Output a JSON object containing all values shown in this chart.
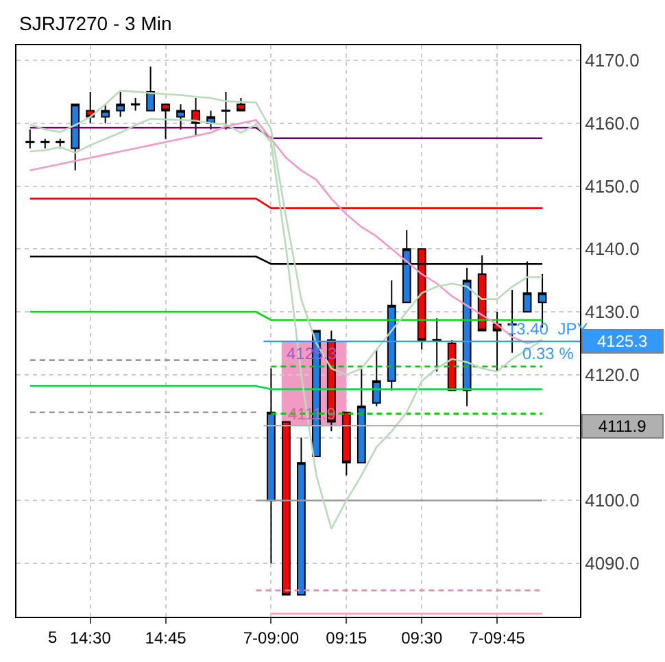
{
  "chart_data": {
    "type": "candlestick",
    "title": "SJRJ7270 - 3 Min",
    "categories": [
      null,
      null,
      null,
      null,
      "14:30",
      null,
      null,
      null,
      null,
      "14:45",
      null,
      null,
      null,
      null,
      null,
      null,
      "7-09:00",
      null,
      null,
      null,
      null,
      "09:15",
      null,
      null,
      null,
      null,
      "09:30",
      null,
      null,
      null,
      null,
      "7-09:45",
      null,
      null,
      null
    ],
    "ohlc": [
      [
        4157,
        4159,
        4156,
        4157
      ],
      [
        4157,
        4157.5,
        4156,
        4157
      ],
      [
        4157,
        4157.5,
        4156,
        4157
      ],
      [
        4156,
        4163,
        4152.5,
        4163
      ],
      [
        4162,
        4165,
        4160,
        4161
      ],
      [
        4161,
        4163,
        4160,
        4162
      ],
      [
        4162,
        4165,
        4161,
        4163
      ],
      [
        4163,
        4164,
        4162,
        4163
      ],
      [
        4162,
        4169,
        4162,
        4165
      ],
      [
        4163,
        4163,
        4157.5,
        4162
      ],
      [
        4161,
        4163,
        4159,
        4162
      ],
      [
        4162,
        4164,
        4158,
        4160
      ],
      [
        4160,
        4162,
        4159,
        4161
      ],
      [
        4162,
        4165,
        4159,
        4162
      ],
      [
        4163,
        4164,
        4162,
        4162
      ],
      null,
      [
        4100,
        4121,
        4090,
        4114
      ],
      [
        4112.5,
        4112.5,
        4085,
        4085
      ],
      [
        4085,
        4110,
        4085,
        4106
      ],
      [
        4107,
        4127,
        4107,
        4127
      ],
      [
        4125.5,
        4127,
        4111,
        4112.5
      ],
      [
        4114,
        4114,
        4104,
        4106
      ],
      [
        4106,
        4121,
        4106,
        4115
      ],
      [
        4115.5,
        4124,
        4115,
        4119
      ],
      [
        4119,
        4135,
        4117.5,
        4131
      ],
      [
        4131.5,
        4143,
        4131.5,
        4140
      ],
      [
        4140,
        4140,
        4124,
        4125.5
      ],
      [
        4125.5,
        4129,
        4120.5,
        4125.5
      ],
      [
        4125,
        4125.5,
        4117.5,
        4117.5
      ],
      [
        4117.5,
        4137,
        4115,
        4135
      ],
      [
        4136,
        4139,
        4127,
        4127
      ],
      [
        4128,
        4130,
        4120.5,
        4127
      ],
      [
        4128,
        4133.5,
        4123.5,
        4128
      ],
      [
        4130,
        4138,
        4130,
        4133
      ],
      [
        4131.5,
        4136,
        4127.5,
        4133
      ]
    ],
    "colors": [
      "#000000",
      "#000000",
      "#000000",
      "#1a7fe6",
      "#ff0000",
      "#1a7fe6",
      "#1a7fe6",
      "#000000",
      "#1a7fe6",
      "#ff0000",
      "#1a7fe6",
      "#ff0000",
      "#1a7fe6",
      "#000000",
      "#ff0000",
      null,
      "#1a7fe6",
      "#ff0000",
      "#1a7fe6",
      "#1a7fe6",
      "#ff0000",
      "#ff0000",
      "#1a7fe6",
      "#1a7fe6",
      "#1a7fe6",
      "#1a7fe6",
      "#ff0000",
      "#000000",
      "#ff0000",
      "#1a7fe6",
      "#ff0000",
      "#ff0000",
      "#000000",
      "#1a7fe6",
      "#1a7fe6"
    ],
    "series": [
      {
        "type": "line",
        "color": "#660066",
        "line_style": "solid",
        "values": [
          4159.3,
          4159.3,
          4159.3,
          4159.3,
          4159.3,
          4159.3,
          4159.3,
          4159.3,
          4159.3,
          4159.3,
          4159.3,
          4159.3,
          4159.3,
          4159.3,
          4159.3,
          4159.3,
          4157.6,
          4157.6,
          4157.6,
          4157.6,
          4157.6,
          4157.6,
          4157.6,
          4157.6,
          4157.6,
          4157.6,
          4157.6,
          4157.6,
          4157.6,
          4157.6,
          4157.6,
          4157.6,
          4157.6,
          4157.6,
          4157.6
        ]
      },
      {
        "type": "line",
        "color": "#ff0000",
        "line_style": "solid",
        "values": [
          4148,
          4148,
          4148,
          4148,
          4148,
          4148,
          4148,
          4148,
          4148,
          4148,
          4148,
          4148,
          4148,
          4148,
          4148,
          4148,
          4146.5,
          4146.5,
          4146.5,
          4146.5,
          4146.5,
          4146.5,
          4146.5,
          4146.5,
          4146.5,
          4146.5,
          4146.5,
          4146.5,
          4146.5,
          4146.5,
          4146.5,
          4146.5,
          4146.5,
          4146.5,
          4146.5
        ]
      },
      {
        "type": "line",
        "color": "#000000",
        "line_style": "solid",
        "values": [
          4138.8,
          4138.8,
          4138.8,
          4138.8,
          4138.8,
          4138.8,
          4138.8,
          4138.8,
          4138.8,
          4138.8,
          4138.8,
          4138.8,
          4138.8,
          4138.8,
          4138.8,
          4138.8,
          4137.6,
          4137.6,
          4137.6,
          4137.6,
          4137.6,
          4137.6,
          4137.6,
          4137.6,
          4137.6,
          4137.6,
          4137.6,
          4137.6,
          4137.6,
          4137.6,
          4137.6,
          4137.6,
          4137.6,
          4137.6,
          4137.6
        ]
      },
      {
        "type": "line",
        "color": "#00dd00",
        "line_style": "solid",
        "values": [
          4130,
          4130,
          4130,
          4130,
          4130,
          4130,
          4130,
          4130,
          4130,
          4130,
          4130,
          4130,
          4130,
          4130,
          4130,
          4130,
          4128.7,
          4128.7,
          4128.7,
          4128.7,
          4128.7,
          4128.7,
          4128.7,
          4128.7,
          4128.7,
          4128.7,
          4128.7,
          4128.7,
          4128.7,
          4128.7,
          4128.7,
          4128.7,
          4128.7,
          4128.7,
          4128.7
        ]
      },
      {
        "type": "line",
        "color": "#999999",
        "line_style": "dashed",
        "values": [
          4122.3,
          4122.3,
          4122.3,
          4122.3,
          4122.3,
          4122.3,
          4122.3,
          4122.3,
          4122.3,
          4122.3,
          4122.3,
          4122.3,
          4122.3,
          4122.3,
          4122.3,
          4122.3,
          null,
          null,
          null,
          null,
          null,
          null,
          null,
          null,
          null,
          null,
          null,
          null,
          null,
          null,
          null,
          null,
          null,
          null,
          null
        ]
      },
      {
        "type": "line",
        "color": "#00cc00",
        "line_style": "dashed",
        "values": [
          null,
          null,
          null,
          null,
          null,
          null,
          null,
          null,
          null,
          null,
          null,
          null,
          null,
          null,
          null,
          null,
          4121.3,
          4121.3,
          4121.3,
          4121.3,
          4121.3,
          4121.3,
          4121.3,
          4121.3,
          4121.3,
          4121.3,
          4121.3,
          4121.3,
          4121.3,
          4121.3,
          4121.3,
          4121.3,
          4121.3,
          4121.3,
          4121.3
        ]
      },
      {
        "type": "line",
        "color": "#00dd44",
        "line_style": "solid",
        "values": [
          4118.2,
          4118.2,
          4118.2,
          4118.2,
          4118.2,
          4118.2,
          4118.2,
          4118.2,
          4118.2,
          4118.2,
          4118.2,
          4118.2,
          4118.2,
          4118.2,
          4118.2,
          4118.2,
          4117.7,
          4117.7,
          4117.7,
          4117.7,
          4117.7,
          4117.7,
          4117.7,
          4117.7,
          4117.7,
          4117.7,
          4117.7,
          4117.7,
          4117.7,
          4117.7,
          4117.7,
          4117.7,
          4117.7,
          4117.7,
          4117.7
        ]
      },
      {
        "type": "line",
        "color": "#999999",
        "line_style": "dashed",
        "values": [
          4114,
          4114,
          4114,
          4114,
          4114,
          4114,
          4114,
          4114,
          4114,
          4114,
          4114,
          4114,
          4114,
          4114,
          4114,
          4114,
          null,
          null,
          null,
          null,
          null,
          null,
          null,
          null,
          null,
          null,
          null,
          null,
          null,
          null,
          null,
          null,
          null,
          null,
          null
        ]
      },
      {
        "type": "line",
        "color": "#00cc00",
        "line_style": "dashed",
        "values": [
          null,
          null,
          null,
          null,
          null,
          null,
          null,
          null,
          null,
          null,
          null,
          null,
          null,
          null,
          null,
          null,
          4113.8,
          4113.8,
          4113.8,
          4113.8,
          4113.8,
          4113.8,
          4113.8,
          4113.8,
          4113.8,
          4113.8,
          4113.8,
          4113.8,
          4113.8,
          4113.8,
          4113.8,
          4113.8,
          4113.8,
          4113.8,
          4113.8
        ]
      },
      {
        "type": "line",
        "color": "#999999",
        "line_style": "solid",
        "values": [
          null,
          null,
          null,
          null,
          null,
          null,
          null,
          null,
          null,
          null,
          null,
          null,
          null,
          null,
          null,
          4100,
          4100,
          4100,
          4100,
          4100,
          4100,
          4100,
          4100,
          4100,
          4100,
          4100,
          4100,
          4100,
          4100,
          4100,
          4100,
          4100,
          4100,
          4100,
          4100
        ]
      },
      {
        "type": "line",
        "color": "#ee82b4",
        "line_style": "dashed",
        "values": [
          null,
          null,
          null,
          null,
          null,
          null,
          null,
          null,
          null,
          null,
          null,
          null,
          null,
          null,
          null,
          4085.7,
          4085.7,
          4085.7,
          4085.7,
          4085.7,
          4085.7,
          4085.7,
          4085.7,
          4085.7,
          4085.7,
          4085.7,
          4085.7,
          4085.7,
          4085.7,
          4085.7,
          4085.7,
          4085.7,
          4085.7,
          4085.7,
          4085.7
        ]
      },
      {
        "type": "line",
        "color": "#f4a6c8",
        "line_style": "solid",
        "values": [
          null,
          null,
          null,
          null,
          null,
          null,
          null,
          null,
          null,
          null,
          null,
          null,
          null,
          null,
          null,
          null,
          4082,
          4082,
          4082,
          4082,
          4082,
          4082,
          4082,
          4082,
          4082,
          4082,
          4082,
          4082,
          4082,
          4082,
          4082,
          4082,
          4082,
          4082,
          4082
        ]
      },
      {
        "type": "line",
        "color": "#f59ac8",
        "line_style": "solid",
        "values": [
          4152.5,
          4153,
          4153.5,
          4154,
          4154.5,
          4155,
          4155.5,
          4156,
          4156.5,
          4157,
          4157.5,
          4158,
          4158.5,
          4159.5,
          4160,
          4160.5,
          4157.5,
          4154.5,
          4152.5,
          4151,
          4148,
          4145.5,
          4143.5,
          4142,
          4140,
          4138,
          4136,
          4134.5,
          4132.5,
          4131,
          4129.5,
          4128,
          4126,
          4125,
          4125.5
        ]
      },
      {
        "type": "line",
        "color": "#b8dcb8",
        "line_style": "solid",
        "values": [
          4159.8,
          4159,
          4158.6,
          4159.7,
          4161,
          4163,
          4165.2,
          4165,
          4164.8,
          4164.6,
          4164.5,
          4164.2,
          4164,
          4163.5,
          4163.4,
          4163.3,
          4159,
          4145,
          4132,
          4125,
          4121,
          4120,
          4121,
          4124,
          4127,
          4130,
          4133,
          4134,
          4134.5,
          4134,
          4132,
          4132,
          4134,
          4135.5,
          4135.5
        ]
      },
      {
        "type": "line",
        "color": "#b8dcb8",
        "line_style": "solid",
        "values": [
          4155.5,
          4155.7,
          4156.2,
          4155.3,
          4156.5,
          4157.5,
          4158.5,
          4159.7,
          4160.7,
          4160.6,
          4160.5,
          4160.4,
          4160,
          4159.8,
          4158.5,
          4159.8,
          4157,
          4140,
          4120,
          4104,
          4095.5,
          4100,
          4104,
          4108.5,
          4111,
          4114,
          4119,
          4121,
          4122.5,
          4122,
          4121,
          4120.5,
          4122.5,
          4124,
          4125.5
        ]
      }
    ],
    "ref_lines": [
      {
        "axis": "y",
        "value": 4125.3,
        "label": "4125.3",
        "color": "#3399ff"
      },
      {
        "axis": "y",
        "value": 4111.9,
        "label": "4111.9",
        "color": "#b0b0b0"
      }
    ],
    "bands": [
      {
        "axis": "y",
        "from": 4111.9,
        "to": 4125.3,
        "color": "#ee82b4"
      }
    ],
    "annotations": [
      "4125.3",
      "4111.9",
      "13.40  JPY",
      "0.33 %",
      "5"
    ],
    "ylim": [
      4081.5,
      4172.4
    ],
    "yticks": [
      {
        "value": 4090,
        "label": "4090.0"
      },
      {
        "value": 4100,
        "label": "4100.0"
      },
      {
        "value": 4110,
        "label": null
      },
      {
        "value": 4120,
        "label": "4120.0"
      },
      {
        "value": 4130,
        "label": "4130.0"
      },
      {
        "value": 4140,
        "label": "4140.0"
      },
      {
        "value": 4150,
        "label": "4150.0"
      },
      {
        "value": 4160,
        "label": "4160.0"
      },
      {
        "value": 4170,
        "label": "4170.0"
      }
    ],
    "grid": true
  }
}
